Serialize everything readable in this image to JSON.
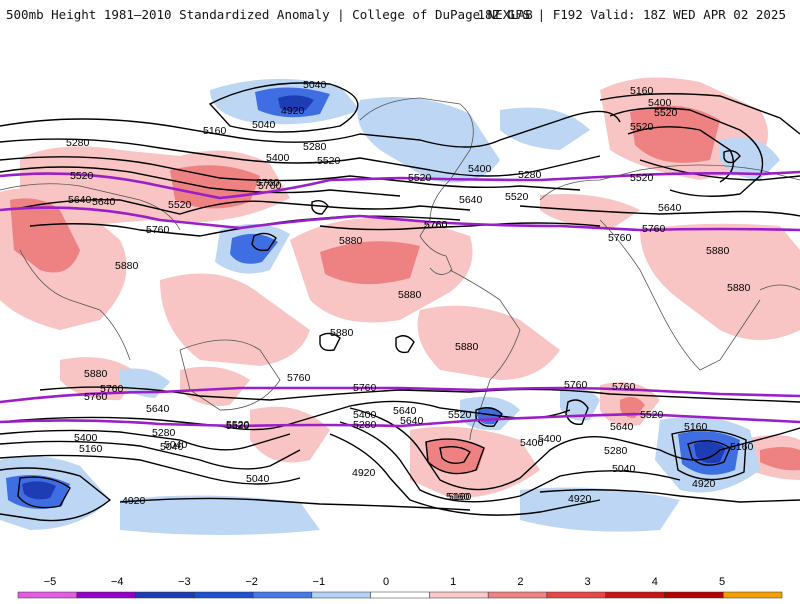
{
  "header": {
    "title": "500mb Height 1981–2010 Standardized Anomaly | College of DuPage NEXLAB",
    "run_info": "18Z GFS | F192 Valid: 18Z WED APR 02 2025"
  },
  "colorbar": {
    "ticks": [
      "−5",
      "−4",
      "−3",
      "−2",
      "−1",
      "0",
      "1",
      "2",
      "3",
      "4",
      "5"
    ],
    "colors": [
      "#e35be3",
      "#9400c8",
      "#1e3cb4",
      "#1e50d2",
      "#4678e6",
      "#b4d2f5",
      "#ffffff",
      "#fac8c8",
      "#f08282",
      "#e64646",
      "#c81414",
      "#b40000",
      "#f5a000"
    ]
  },
  "map": {
    "contour_labels": [
      "5040",
      "4920",
      "5040",
      "5160",
      "5280",
      "5520",
      "5640",
      "5400",
      "5520",
      "5280",
      "5760",
      "5520",
      "5760",
      "5880",
      "5520",
      "5400",
      "5280",
      "5640",
      "5520",
      "5760",
      "5160",
      "5400",
      "5520",
      "5520",
      "5640",
      "5760",
      "5760",
      "5880",
      "5880",
      "5880",
      "5880",
      "5880",
      "5880",
      "5760",
      "5760",
      "5760",
      "5760",
      "5640",
      "5400",
      "5640",
      "5520",
      "5280",
      "5520",
      "5280",
      "5160",
      "5040",
      "5400",
      "5160",
      "5040",
      "4920",
      "5040",
      "5160",
      "4920",
      "5760",
      "5520",
      "5640",
      "5400",
      "5280",
      "5160",
      "5040",
      "4920",
      "5760",
      "5640",
      "5520",
      "5760",
      "5640",
      "5160",
      "4920",
      "5760",
      "5880",
      "5520",
      "5400"
    ],
    "accent_colors": {
      "contour": "#000000",
      "highlight_contour": "#9b1ec8"
    }
  }
}
